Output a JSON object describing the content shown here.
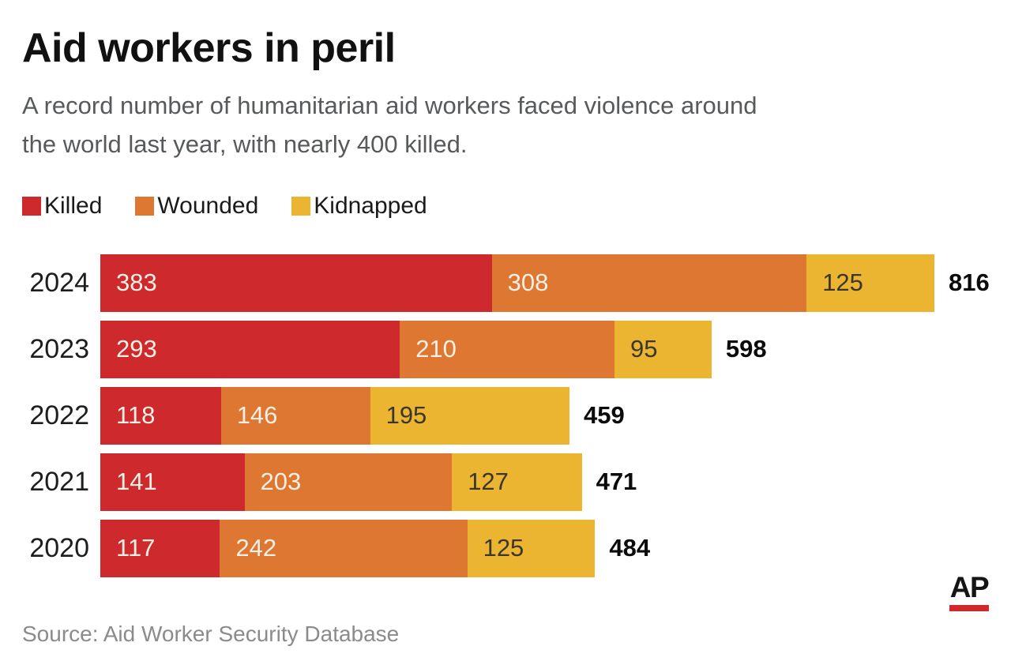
{
  "header": {
    "title": "Aid workers in peril",
    "subtitle": "A record number of humanitarian aid workers faced violence around\nthe world last year, with nearly 400 killed."
  },
  "legend": {
    "items": [
      {
        "label": "Killed",
        "color": "#ce2a2d"
      },
      {
        "label": "Wounded",
        "color": "#dd7731"
      },
      {
        "label": "Kidnapped",
        "color": "#ebb431"
      }
    ]
  },
  "chart_data": {
    "type": "bar",
    "orientation": "horizontal",
    "stacked": true,
    "categories": [
      "2024",
      "2023",
      "2022",
      "2021",
      "2020"
    ],
    "series": [
      {
        "name": "Killed",
        "color": "#ce2a2d",
        "label_color": "#f8f0e4",
        "values": [
          383,
          293,
          118,
          141,
          117
        ]
      },
      {
        "name": "Wounded",
        "color": "#dd7731",
        "label_color": "#f8f0e4",
        "values": [
          308,
          210,
          146,
          203,
          242
        ]
      },
      {
        "name": "Kidnapped",
        "color": "#ebb431",
        "label_color": "#3a362e",
        "values": [
          125,
          95,
          195,
          127,
          125
        ]
      }
    ],
    "totals": [
      816,
      598,
      459,
      471,
      484
    ],
    "xlim": [
      0,
      816
    ],
    "value_labels": "inside-left",
    "total_labels": "outside-right",
    "grid": false,
    "legend_position": "top"
  },
  "footer": {
    "source": "Source: Aid Worker Security Database",
    "logo_text": "AP",
    "logo_bar_color": "#d0282d"
  }
}
